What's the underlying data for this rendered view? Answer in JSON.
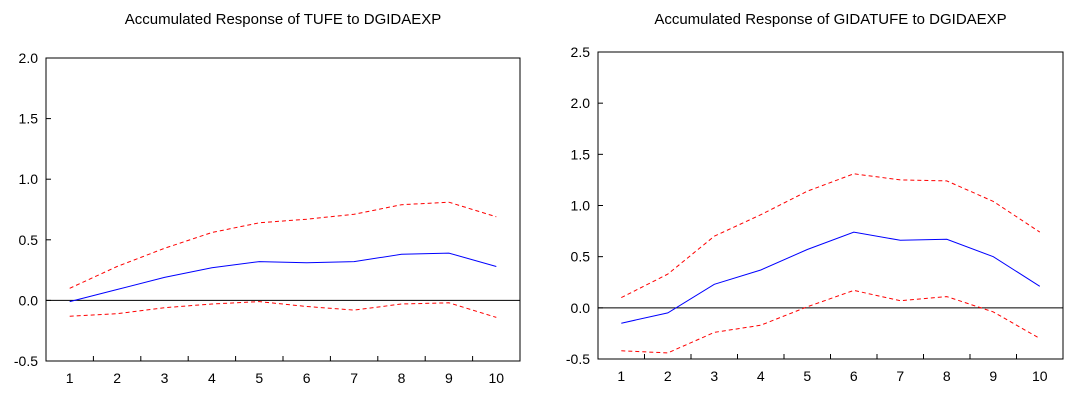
{
  "colors": {
    "response": "#0000ff",
    "band": "#ff0000",
    "axis": "#000000",
    "background": "#ffffff"
  },
  "chart_data": [
    {
      "type": "line",
      "title": "Accumulated Response of TUFE to DGIDAEXP",
      "xlabel": "",
      "ylabel": "",
      "x": [
        1,
        2,
        3,
        4,
        5,
        6,
        7,
        8,
        9,
        10
      ],
      "xticks": [
        "1",
        "2",
        "3",
        "4",
        "5",
        "6",
        "7",
        "8",
        "9",
        "10"
      ],
      "ylim": [
        -0.5,
        2.0
      ],
      "yticks": [
        "-0.5",
        "0.0",
        "0.5",
        "1.0",
        "1.5",
        "2.0"
      ],
      "zero_line": true,
      "grid": false,
      "series": [
        {
          "role": "response",
          "style": "solid",
          "values": [
            -0.01,
            0.09,
            0.19,
            0.27,
            0.32,
            0.31,
            0.32,
            0.38,
            0.39,
            0.28
          ]
        },
        {
          "role": "upper-band",
          "style": "dashed",
          "values": [
            0.1,
            0.28,
            0.43,
            0.56,
            0.64,
            0.67,
            0.71,
            0.79,
            0.81,
            0.69
          ]
        },
        {
          "role": "lower-band",
          "style": "dashed",
          "values": [
            -0.13,
            -0.11,
            -0.06,
            -0.03,
            -0.01,
            -0.05,
            -0.08,
            -0.03,
            -0.02,
            -0.14
          ]
        }
      ]
    },
    {
      "type": "line",
      "title": "Accumulated Response of GIDATUFE to DGIDAEXP",
      "xlabel": "",
      "ylabel": "",
      "x": [
        1,
        2,
        3,
        4,
        5,
        6,
        7,
        8,
        9,
        10
      ],
      "xticks": [
        "1",
        "2",
        "3",
        "4",
        "5",
        "6",
        "7",
        "8",
        "9",
        "10"
      ],
      "ylim": [
        -0.5,
        2.5
      ],
      "yticks": [
        "-0.5",
        "0.0",
        "0.5",
        "1.0",
        "1.5",
        "2.0",
        "2.5"
      ],
      "zero_line": true,
      "grid": false,
      "series": [
        {
          "role": "response",
          "style": "solid",
          "values": [
            -0.15,
            -0.05,
            0.23,
            0.37,
            0.57,
            0.74,
            0.66,
            0.67,
            0.5,
            0.21
          ]
        },
        {
          "role": "upper-band",
          "style": "dashed",
          "values": [
            0.1,
            0.33,
            0.7,
            0.91,
            1.14,
            1.31,
            1.25,
            1.24,
            1.04,
            0.74
          ]
        },
        {
          "role": "lower-band",
          "style": "dashed",
          "values": [
            -0.42,
            -0.44,
            -0.24,
            -0.17,
            0.01,
            0.17,
            0.07,
            0.11,
            -0.04,
            -0.3
          ]
        }
      ]
    }
  ]
}
